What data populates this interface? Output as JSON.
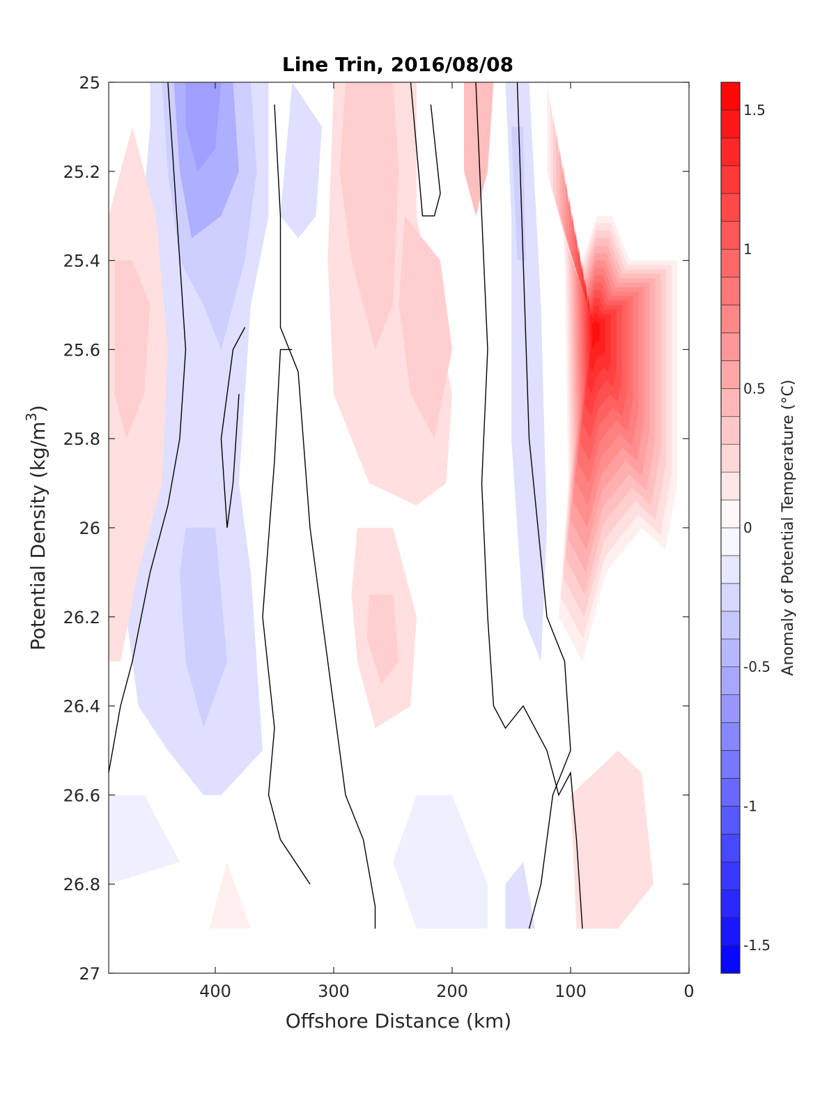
{
  "chart_data": {
    "type": "heatmap",
    "title": "Line Trin, 2016/08/08",
    "xlabel": "Offshore Distance (km)",
    "ylabel_main": "Potential Density (kg/m",
    "ylabel_sup": "3",
    "ylabel_close": ")",
    "x_reversed": true,
    "y_reversed": true,
    "xlim": [
      0,
      490
    ],
    "ylim": [
      25,
      27
    ],
    "x_ticks": [
      400,
      300,
      200,
      100,
      0
    ],
    "x_tick_labels": [
      "400",
      "300",
      "200",
      "100",
      "0"
    ],
    "y_ticks": [
      25,
      25.2,
      25.4,
      25.6,
      25.8,
      26,
      26.2,
      26.4,
      26.6,
      26.8,
      27
    ],
    "y_tick_labels": [
      "25",
      "25.2",
      "25.4",
      "25.6",
      "25.8",
      "26",
      "26.2",
      "26.4",
      "26.6",
      "26.8",
      "27"
    ],
    "colorbar": {
      "label": "Anomaly of Potential Temperature (°C)",
      "range": [
        -1.6,
        1.6
      ],
      "step": 0.1,
      "ticks": [
        1.5,
        1,
        0.5,
        0,
        -0.5,
        -1,
        -1.5
      ],
      "tick_labels": [
        "1.5",
        "1",
        "0.5",
        "0",
        "-0.5",
        "-1",
        "-1.5"
      ],
      "max_color": "#ff0000",
      "min_color": "#0000ff",
      "zero_color": "#ffffff"
    },
    "anomaly_regions": [
      {
        "value": -0.2,
        "points": [
          [
            455,
            25
          ],
          [
            355,
            25
          ],
          [
            355,
            25.3
          ],
          [
            370,
            25.5
          ],
          [
            380,
            25.9
          ],
          [
            370,
            26.1
          ],
          [
            360,
            26.5
          ],
          [
            395,
            26.6
          ],
          [
            410,
            26.6
          ],
          [
            440,
            26.5
          ],
          [
            465,
            26.4
          ],
          [
            475,
            26.2
          ],
          [
            485,
            26.0
          ],
          [
            480,
            25.7
          ],
          [
            465,
            25.4
          ],
          [
            455,
            25.1
          ]
        ]
      },
      {
        "value": -0.3,
        "points": [
          [
            445,
            25
          ],
          [
            370,
            25
          ],
          [
            365,
            25.2
          ],
          [
            375,
            25.4
          ],
          [
            395,
            25.6
          ],
          [
            410,
            25.5
          ],
          [
            430,
            25.4
          ],
          [
            440,
            25.2
          ]
        ]
      },
      {
        "value": -0.5,
        "points": [
          [
            435,
            25
          ],
          [
            385,
            25
          ],
          [
            380,
            25.2
          ],
          [
            395,
            25.3
          ],
          [
            420,
            25.35
          ],
          [
            430,
            25.2
          ]
        ]
      },
      {
        "value": -0.6,
        "points": [
          [
            425,
            25
          ],
          [
            395,
            25
          ],
          [
            400,
            25.15
          ],
          [
            415,
            25.2
          ],
          [
            425,
            25.1
          ]
        ]
      },
      {
        "value": -0.3,
        "points": [
          [
            425,
            26.0
          ],
          [
            400,
            26.0
          ],
          [
            390,
            26.3
          ],
          [
            410,
            26.45
          ],
          [
            425,
            26.3
          ],
          [
            430,
            26.1
          ]
        ]
      },
      {
        "value": -0.2,
        "points": [
          [
            310,
            25.1
          ],
          [
            335,
            25.0
          ],
          [
            345,
            25.3
          ],
          [
            330,
            25.35
          ],
          [
            315,
            25.3
          ]
        ]
      },
      {
        "value": -0.2,
        "points": [
          [
            155,
            25
          ],
          [
            135,
            25
          ],
          [
            125,
            25.5
          ],
          [
            120,
            26.0
          ],
          [
            125,
            26.3
          ],
          [
            140,
            26.2
          ],
          [
            150,
            25.8
          ],
          [
            150,
            25.3
          ]
        ]
      },
      {
        "value": -0.3,
        "points": [
          [
            150,
            25.1
          ],
          [
            140,
            25.1
          ],
          [
            138,
            25.4
          ],
          [
            145,
            25.4
          ]
        ]
      },
      {
        "value": -0.1,
        "points": [
          [
            490,
            26.6
          ],
          [
            460,
            26.6
          ],
          [
            430,
            26.75
          ],
          [
            490,
            26.8
          ]
        ]
      },
      {
        "value": -0.1,
        "points": [
          [
            230,
            26.6
          ],
          [
            200,
            26.6
          ],
          [
            170,
            26.8
          ],
          [
            170,
            26.9
          ],
          [
            230,
            26.9
          ],
          [
            250,
            26.75
          ]
        ]
      },
      {
        "value": -0.2,
        "points": [
          [
            155,
            26.8
          ],
          [
            140,
            26.75
          ],
          [
            130,
            26.9
          ],
          [
            155,
            26.9
          ]
        ]
      },
      {
        "value": 0.2,
        "points": [
          [
            490,
            25.3
          ],
          [
            470,
            25.1
          ],
          [
            450,
            25.3
          ],
          [
            440,
            25.6
          ],
          [
            445,
            25.9
          ],
          [
            465,
            26.1
          ],
          [
            480,
            26.3
          ],
          [
            490,
            26.3
          ]
        ]
      },
      {
        "value": 0.3,
        "points": [
          [
            485,
            25.4
          ],
          [
            470,
            25.4
          ],
          [
            455,
            25.5
          ],
          [
            460,
            25.7
          ],
          [
            475,
            25.8
          ],
          [
            485,
            25.7
          ]
        ]
      },
      {
        "value": 0.2,
        "points": [
          [
            300,
            25
          ],
          [
            230,
            25
          ],
          [
            230,
            25.3
          ],
          [
            215,
            25.5
          ],
          [
            200,
            25.7
          ],
          [
            205,
            25.9
          ],
          [
            230,
            25.95
          ],
          [
            270,
            25.9
          ],
          [
            300,
            25.7
          ],
          [
            305,
            25.4
          ]
        ]
      },
      {
        "value": 0.3,
        "points": [
          [
            290,
            25
          ],
          [
            250,
            25
          ],
          [
            245,
            25.2
          ],
          [
            250,
            25.5
          ],
          [
            265,
            25.6
          ],
          [
            285,
            25.4
          ],
          [
            295,
            25.2
          ]
        ]
      },
      {
        "value": 0.3,
        "points": [
          [
            240,
            25.3
          ],
          [
            210,
            25.4
          ],
          [
            200,
            25.6
          ],
          [
            215,
            25.8
          ],
          [
            235,
            25.7
          ],
          [
            245,
            25.5
          ]
        ]
      },
      {
        "value": 0.4,
        "points": [
          [
            190,
            25
          ],
          [
            165,
            25
          ],
          [
            170,
            25.2
          ],
          [
            180,
            25.3
          ],
          [
            190,
            25.2
          ]
        ]
      },
      {
        "value": 0.2,
        "points": [
          [
            280,
            26.0
          ],
          [
            250,
            26.0
          ],
          [
            230,
            26.2
          ],
          [
            235,
            26.4
          ],
          [
            265,
            26.45
          ],
          [
            280,
            26.3
          ],
          [
            285,
            26.15
          ]
        ]
      },
      {
        "value": 0.3,
        "points": [
          [
            270,
            26.15
          ],
          [
            250,
            26.15
          ],
          [
            245,
            26.3
          ],
          [
            260,
            26.35
          ],
          [
            272,
            26.25
          ]
        ]
      },
      {
        "value": 0.2,
        "points": [
          [
            100,
            26.6
          ],
          [
            60,
            26.5
          ],
          [
            40,
            26.55
          ],
          [
            30,
            26.8
          ],
          [
            60,
            26.9
          ],
          [
            95,
            26.9
          ]
        ]
      },
      {
        "value": 0.1,
        "points": [
          [
            390,
            26.75
          ],
          [
            370,
            26.9
          ],
          [
            405,
            26.9
          ]
        ]
      }
    ],
    "coastal_warm_core": {
      "outer_boundary": [
        [
          120,
          25
        ],
        [
          110,
          25.2
        ],
        [
          105,
          25.4
        ],
        [
          102,
          25.9
        ],
        [
          110,
          26.2
        ],
        [
          90,
          26.3
        ],
        [
          70,
          26.1
        ],
        [
          40,
          26.0
        ],
        [
          20,
          26.05
        ],
        [
          10,
          25.9
        ],
        [
          10,
          25.4
        ],
        [
          50,
          25.4
        ],
        [
          65,
          25.3
        ],
        [
          78,
          25.3
        ],
        [
          90,
          25.4
        ],
        [
          100,
          25.4
        ],
        [
          120,
          25.2
        ]
      ],
      "max_value": 1.5,
      "center": [
        80,
        25.55
      ]
    },
    "zero_contours": [
      [
        [
          440,
          25
        ],
        [
          435,
          25.2
        ],
        [
          430,
          25.4
        ],
        [
          425,
          25.6
        ],
        [
          430,
          25.8
        ],
        [
          440,
          25.95
        ],
        [
          455,
          26.1
        ],
        [
          470,
          26.3
        ],
        [
          480,
          26.4
        ],
        [
          490,
          26.55
        ]
      ],
      [
        [
          350,
          25.05
        ],
        [
          345,
          25.3
        ],
        [
          345,
          25.55
        ],
        [
          330,
          25.65
        ],
        [
          320,
          26.0
        ],
        [
          310,
          26.2
        ],
        [
          300,
          26.4
        ],
        [
          290,
          26.6
        ],
        [
          275,
          26.7
        ],
        [
          265,
          26.85
        ],
        [
          265,
          26.9
        ]
      ],
      [
        [
          375,
          25.55
        ],
        [
          385,
          25.6
        ],
        [
          395,
          25.8
        ],
        [
          390,
          26.0
        ],
        [
          385,
          25.9
        ],
        [
          380,
          25.7
        ]
      ],
      [
        [
          335,
          25.6
        ],
        [
          345,
          25.6
        ],
        [
          350,
          25.85
        ],
        [
          360,
          26.2
        ],
        [
          350,
          26.45
        ],
        [
          355,
          26.6
        ],
        [
          345,
          26.7
        ],
        [
          320,
          26.8
        ]
      ],
      [
        [
          235,
          25.0
        ],
        [
          230,
          25.15
        ],
        [
          225,
          25.3
        ],
        [
          215,
          25.3
        ],
        [
          210,
          25.25
        ],
        [
          218,
          25.05
        ]
      ],
      [
        [
          180,
          25.0
        ],
        [
          175,
          25.3
        ],
        [
          170,
          25.6
        ],
        [
          175,
          25.9
        ],
        [
          170,
          26.2
        ],
        [
          165,
          26.4
        ],
        [
          155,
          26.45
        ],
        [
          140,
          26.4
        ],
        [
          120,
          26.5
        ],
        [
          110,
          26.6
        ],
        [
          100,
          26.55
        ],
        [
          95,
          26.7
        ],
        [
          90,
          26.9
        ]
      ],
      [
        [
          145,
          25.0
        ],
        [
          140,
          25.4
        ],
        [
          135,
          25.8
        ],
        [
          120,
          26.2
        ],
        [
          105,
          26.3
        ],
        [
          100,
          26.5
        ],
        [
          115,
          26.6
        ],
        [
          125,
          26.8
        ],
        [
          135,
          26.9
        ]
      ]
    ]
  }
}
